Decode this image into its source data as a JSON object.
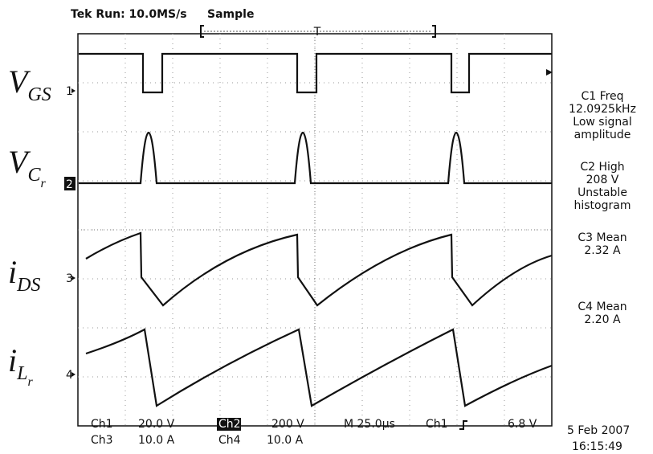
{
  "header": {
    "title": "Tek Run: 10.0MS/s",
    "mode": "Sample",
    "trigger": "T"
  },
  "traces": [
    {
      "main": "V",
      "sub": "GS",
      "channel": "1"
    },
    {
      "main": "V",
      "sub": "C",
      "subsub": "r",
      "channel": "2"
    },
    {
      "main": "i",
      "sub": "DS",
      "channel": "3"
    },
    {
      "main": "i",
      "sub": "L",
      "subsub": "r",
      "channel": "4"
    }
  ],
  "measurements": [
    [
      "C1 Freq",
      "12.0925kHz",
      "Low signal",
      "amplitude"
    ],
    [
      "C2 High",
      "208 V",
      "Unstable",
      "histogram"
    ],
    [
      "C3 Mean",
      "2.32 A"
    ],
    [
      "C4 Mean",
      "2.20 A"
    ]
  ],
  "footer": {
    "row1": [
      "Ch1",
      "20.0 V",
      "Ch2",
      "200 V",
      "M 25.0µs",
      "Ch1",
      "6.8 V"
    ],
    "row2": [
      "Ch3",
      "10.0 A",
      "Ch4",
      "10.0 A"
    ],
    "date": "5 Feb 2007",
    "time": "16:15:49"
  }
}
